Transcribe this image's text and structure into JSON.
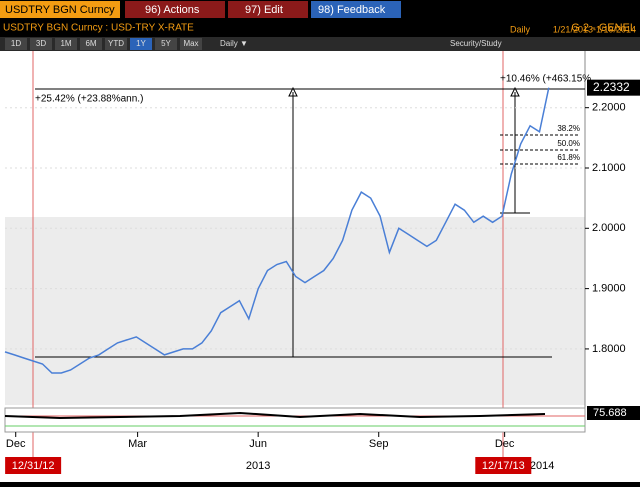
{
  "header": {
    "ticker_tab": "USDTRY BGN Curncy",
    "menus": [
      "96) Actions",
      "97) Edit",
      "98) Feedback"
    ],
    "subtitle": "USDTRY BGN Curncy : USD-TRY X-RATE",
    "page": "G 2 - GENEL",
    "frequency": "Daily",
    "range": "1/21/2013-1/19/2014"
  },
  "toolbar": {
    "periods": [
      "1D",
      "3D",
      "1M",
      "6M",
      "YTD",
      "1Y",
      "5Y",
      "Max"
    ],
    "interval": "Daily ▼",
    "study": "Security/Study"
  },
  "chart_data": {
    "type": "line",
    "x": [
      9,
      16,
      23,
      30,
      37,
      44,
      51,
      58,
      65,
      72,
      79,
      86,
      93,
      100,
      107,
      114,
      121,
      128,
      135,
      142,
      149,
      156,
      163,
      170,
      177,
      184,
      191,
      198,
      205,
      212,
      219,
      226,
      233,
      240,
      247,
      254,
      261,
      268,
      275,
      282,
      289,
      296,
      303,
      310,
      317,
      324,
      331,
      338,
      345,
      352,
      359,
      366,
      373,
      380,
      387,
      394,
      401,
      408,
      415
    ],
    "series": [
      {
        "color": "#4a7fd6",
        "values": [
          1.795,
          1.79,
          1.785,
          1.78,
          1.775,
          1.76,
          1.76,
          1.765,
          1.775,
          1.785,
          1.79,
          1.8,
          1.81,
          1.815,
          1.82,
          1.81,
          1.8,
          1.79,
          1.795,
          1.8,
          1.8,
          1.81,
          1.83,
          1.86,
          1.87,
          1.88,
          1.85,
          1.9,
          1.93,
          1.94,
          1.945,
          1.92,
          1.91,
          1.92,
          1.93,
          1.95,
          1.98,
          2.03,
          2.06,
          2.05,
          2.02,
          1.96,
          2.0,
          1.99,
          1.98,
          1.97,
          1.98,
          2.01,
          2.04,
          2.03,
          2.01,
          2.02,
          2.01,
          2.02,
          2.09,
          2.14,
          2.17,
          2.16,
          2.2332
        ]
      }
    ],
    "xlim": [
      9,
      442
    ],
    "ylim": [
      1.707,
      2.294
    ],
    "xticks": [
      {
        "value": 17,
        "label": "Dec"
      },
      {
        "value": 108,
        "label": "Mar"
      },
      {
        "value": 198,
        "label": "Jun"
      },
      {
        "value": 288,
        "label": "Sep"
      },
      {
        "value": 382,
        "label": "Dec"
      }
    ],
    "year_labels": [
      {
        "value": 198,
        "label": "2013"
      },
      {
        "value": 410,
        "label": "2014"
      }
    ],
    "yticks": [
      {
        "value": 1.8,
        "label": "1.8000"
      },
      {
        "value": 1.9,
        "label": "1.9000"
      },
      {
        "value": 2.0,
        "label": "2.0000"
      },
      {
        "value": 2.1,
        "label": "2.1000"
      },
      {
        "value": 2.2,
        "label": "2.2000"
      }
    ],
    "date_markers": [
      {
        "value": 30,
        "label": "12/31/12"
      },
      {
        "value": 381,
        "label": "12/17/13"
      }
    ],
    "last_price": 2.2332,
    "annotations": [
      "+25.42% (+23.88%ann.)",
      "+10.46% (+463.15%"
    ],
    "fib_labels": [
      "38.2%",
      "50.0%",
      "61.8%"
    ],
    "study_value": "75.688"
  }
}
